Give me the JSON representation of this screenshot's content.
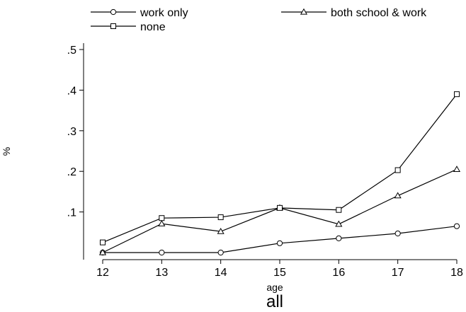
{
  "chart_data": {
    "type": "line",
    "title": "",
    "subtitle": "all",
    "xlabel": "age",
    "ylabel": "%",
    "x": [
      12,
      13,
      14,
      15,
      16,
      17,
      18
    ],
    "xlim": [
      12,
      18
    ],
    "ylim": [
      0,
      0.5
    ],
    "x_ticks": [
      "12",
      "13",
      "14",
      "15",
      "16",
      "17",
      "18"
    ],
    "y_ticks": [
      {
        "value": 0.1,
        "label": ".1"
      },
      {
        "value": 0.2,
        "label": ".2"
      },
      {
        "value": 0.3,
        "label": ".3"
      },
      {
        "value": 0.4,
        "label": ".4"
      },
      {
        "value": 0.5,
        "label": ".5"
      }
    ],
    "grid": false,
    "legend_position": "top",
    "series": [
      {
        "name": "work only",
        "marker": "circle",
        "values": [
          0.0,
          0.0,
          0.0,
          0.023,
          0.035,
          0.047,
          0.065
        ]
      },
      {
        "name": "both school & work",
        "marker": "triangle",
        "values": [
          0.0,
          0.071,
          0.052,
          0.11,
          0.07,
          0.14,
          0.205
        ]
      },
      {
        "name": "none",
        "marker": "square",
        "values": [
          0.025,
          0.085,
          0.087,
          0.11,
          0.105,
          0.203,
          0.39
        ]
      }
    ]
  }
}
